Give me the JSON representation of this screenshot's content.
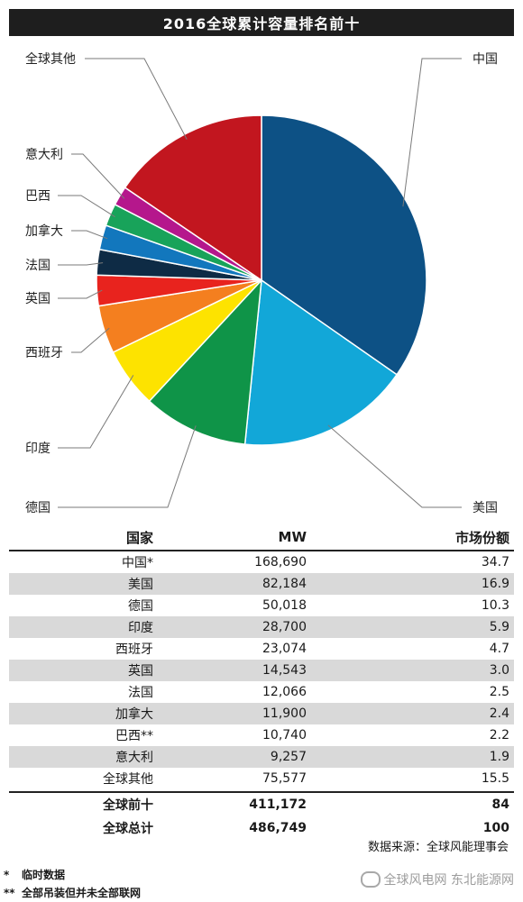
{
  "chart_data": {
    "type": "pie",
    "title": "2016全球累计容量排名前十",
    "slices": [
      {
        "label": "中国",
        "value": 34.7,
        "color": "#0d5185"
      },
      {
        "label": "美国",
        "value": 16.9,
        "color": "#12a7d8"
      },
      {
        "label": "德国",
        "value": 10.3,
        "color": "#0f9448"
      },
      {
        "label": "印度",
        "value": 5.9,
        "color": "#fde300"
      },
      {
        "label": "西班牙",
        "value": 4.7,
        "color": "#f47f1f"
      },
      {
        "label": "英国",
        "value": 3.0,
        "color": "#e8231e"
      },
      {
        "label": "法国",
        "value": 2.5,
        "color": "#0e2b45"
      },
      {
        "label": "加拿大",
        "value": 2.4,
        "color": "#1277bd"
      },
      {
        "label": "巴西",
        "value": 2.2,
        "color": "#18a35a"
      },
      {
        "label": "意大利",
        "value": 1.9,
        "color": "#b5178c"
      },
      {
        "label": "全球其他",
        "value": 15.5,
        "color": "#c2161f"
      }
    ]
  },
  "table": {
    "headers": [
      "国家",
      "MW",
      "市场份额"
    ],
    "rows": [
      [
        "中国*",
        "168,690",
        "34.7"
      ],
      [
        "美国",
        "82,184",
        "16.9"
      ],
      [
        "德国",
        "50,018",
        "10.3"
      ],
      [
        "印度",
        "28,700",
        "5.9"
      ],
      [
        "西班牙",
        "23,074",
        "4.7"
      ],
      [
        "英国",
        "14,543",
        "3.0"
      ],
      [
        "法国",
        "12,066",
        "2.5"
      ],
      [
        "加拿大",
        "11,900",
        "2.4"
      ],
      [
        "巴西**",
        "10,740",
        "2.2"
      ],
      [
        "意大利",
        "9,257",
        "1.9"
      ],
      [
        "全球其他",
        "75,577",
        "15.5"
      ]
    ],
    "summary": [
      [
        "全球前十",
        "411,172",
        "84"
      ],
      [
        "全球总计",
        "486,749",
        "100"
      ]
    ]
  },
  "source": "数据来源：全球风能理事会",
  "footnotes": [
    {
      "mark": "*",
      "text": "临时数据"
    },
    {
      "mark": "**",
      "text": "全部吊装但并未全部联网"
    }
  ],
  "watermark": "全球风电网  东北能源网"
}
